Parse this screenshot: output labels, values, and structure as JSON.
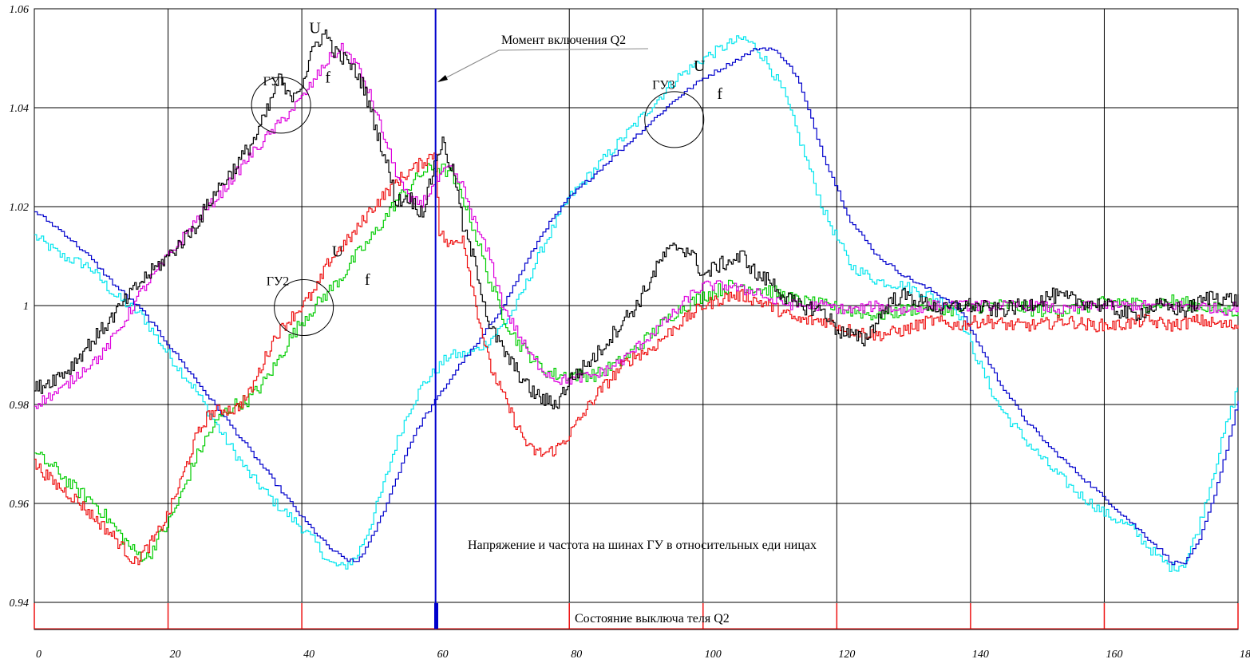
{
  "chart_data": {
    "type": "line",
    "title": "",
    "xlabel": "",
    "ylabel": "",
    "xlim": [
      0,
      180
    ],
    "ylim": [
      0.94,
      1.06
    ],
    "grid": true,
    "x_ticks": [
      "0",
      "20",
      "40",
      "60",
      "80",
      "100",
      "120",
      "140",
      "160",
      "180"
    ],
    "y_ticks": [
      "0.94",
      "0.96",
      "0.98",
      "1",
      "1.02",
      "1.04",
      "1.06"
    ],
    "caption_main": "Напряжение и частота на шинах ГУ  в относительных еди ницах",
    "caption_switch": "Состояние выключа теля Q2",
    "switch_marker_label": "Момент включения Q2",
    "switch_time": 60,
    "switch_ticks": [
      0,
      20,
      40,
      80,
      100,
      120,
      140,
      160,
      180
    ],
    "switch_state_bar": [
      59.8,
      60.4
    ],
    "annotations": [
      {
        "text": "ГУ1",
        "x": 34.2,
        "y": 1.0445,
        "kind": "group"
      },
      {
        "text": "ГУ2",
        "x": 34.7,
        "y": 1.0041,
        "kind": "group"
      },
      {
        "text": "ГУ3",
        "x": 92.4,
        "y": 1.0438,
        "kind": "group"
      },
      {
        "text": "U",
        "x": 41.1,
        "y": 1.0551,
        "kind": "var"
      },
      {
        "text": "f",
        "x": 43.5,
        "y": 1.0451,
        "kind": "var"
      },
      {
        "text": "U",
        "x": 44.5,
        "y": 1.0099,
        "kind": "var"
      },
      {
        "text": "f",
        "x": 49.4,
        "y": 1.0042,
        "kind": "var"
      },
      {
        "text": "U",
        "x": 98.6,
        "y": 1.0474,
        "kind": "var"
      },
      {
        "text": "f",
        "x": 102.1,
        "y": 1.0418,
        "kind": "var"
      }
    ],
    "circles": [
      {
        "x": 36.9,
        "y": 1.0405,
        "label": "ГУ1"
      },
      {
        "x": 40.3,
        "y": 0.9996,
        "label": "ГУ2"
      },
      {
        "x": 95.7,
        "y": 1.0376,
        "label": "ГУ3"
      }
    ],
    "colors": {
      "u1": "#000000",
      "f1": "#dd00dd",
      "u2": "#ee1111",
      "f2": "#00cc00",
      "u3": "#00e5ee",
      "f3": "#0000cc",
      "switch_line": "#0000cc",
      "switch_ticks": "#ee1111"
    },
    "series": [
      {
        "key": "u1",
        "label": "U",
        "group": "ГУ1",
        "noise": 0.0016,
        "stair": 0.25,
        "x": [
          0,
          5,
          8,
          10,
          13,
          16,
          20,
          24,
          27,
          30,
          33,
          35,
          36.5,
          38,
          40,
          42,
          43.5,
          45,
          47,
          49,
          51,
          53,
          54,
          56,
          57,
          58,
          59,
          60,
          61,
          62,
          63,
          64,
          66,
          68,
          70,
          72,
          74,
          76,
          78,
          80,
          84,
          88,
          90,
          92,
          94,
          96,
          98,
          100,
          102,
          104,
          106,
          108,
          110,
          112,
          114,
          118,
          120,
          122,
          124,
          126,
          128,
          130,
          134,
          136,
          138,
          140,
          144,
          148,
          152,
          156,
          160,
          164,
          168,
          172,
          176,
          180
        ],
        "y": [
          0.983,
          0.987,
          0.992,
          0.995,
          1.0,
          1.005,
          1.01,
          1.016,
          1.023,
          1.028,
          1.034,
          1.04,
          1.046,
          1.042,
          1.045,
          1.053,
          1.055,
          1.051,
          1.049,
          1.045,
          1.036,
          1.027,
          1.021,
          1.022,
          1.02,
          1.019,
          1.024,
          1.03,
          1.033,
          1.029,
          1.025,
          1.016,
          1.008,
          0.996,
          0.991,
          0.987,
          0.983,
          0.981,
          0.98,
          0.985,
          0.99,
          0.997,
          1.0,
          1.005,
          1.01,
          1.012,
          1.011,
          1.006,
          1.008,
          1.009,
          1.01,
          1.006,
          1.005,
          1.002,
          1.0,
          0.999,
          0.995,
          0.994,
          0.993,
          0.997,
          1.001,
          1.002,
          1.0,
          0.999,
          1.0,
          1.0,
          0.999,
          1.0,
          1.002,
          1.001,
          1.0,
          0.998,
          1.0,
          0.999,
          1.002,
          1.001
        ]
      },
      {
        "key": "f1",
        "label": "f",
        "group": "ГУ1",
        "noise": 0.0011,
        "stair": 0.3,
        "x": [
          0,
          4,
          8,
          10,
          13,
          16,
          20,
          24,
          28,
          32,
          36,
          40,
          44,
          46,
          48,
          50,
          52,
          54,
          56,
          58,
          60,
          62,
          64,
          66,
          68,
          70,
          72,
          74,
          76,
          78,
          80,
          84,
          88,
          92,
          96,
          98,
          100,
          102,
          104,
          106,
          108,
          110,
          114,
          118,
          122,
          126,
          130,
          134,
          138,
          142,
          146,
          150,
          154,
          158,
          162,
          166,
          170,
          174,
          178,
          180
        ],
        "y": [
          0.98,
          0.983,
          0.988,
          0.99,
          0.996,
          1.003,
          1.01,
          1.017,
          1.023,
          1.03,
          1.036,
          1.042,
          1.05,
          1.052,
          1.049,
          1.043,
          1.035,
          1.027,
          1.021,
          1.021,
          1.025,
          1.028,
          1.024,
          1.016,
          1.01,
          1.0,
          0.995,
          0.99,
          0.987,
          0.985,
          0.985,
          0.986,
          0.989,
          0.994,
          0.999,
          1.002,
          1.004,
          1.004,
          1.004,
          1.003,
          1.003,
          1.001,
          1.0,
          1.0,
          0.999,
          1.0,
          0.999,
          1.0,
          1.0,
          1.0,
          1.0,
          1.0,
          0.999,
          1.0,
          1.0,
          1.0,
          1.0,
          1.0,
          0.999,
          1.0
        ]
      },
      {
        "key": "u2",
        "label": "U",
        "group": "ГУ2",
        "noise": 0.0013,
        "stair": 0.25,
        "x": [
          0,
          3,
          6,
          9,
          12,
          15,
          18,
          20,
          22,
          24,
          26,
          28,
          30,
          32,
          34,
          36,
          38,
          40,
          42,
          44,
          46,
          48,
          50,
          52,
          54,
          56,
          58,
          59,
          60,
          60.5,
          62,
          64,
          66,
          68,
          70,
          72,
          74,
          76,
          78,
          80,
          84,
          88,
          90,
          92,
          96,
          100,
          104,
          106,
          110,
          114,
          118,
          122,
          126,
          130,
          134,
          138,
          142,
          146,
          150,
          154,
          158,
          162,
          166,
          170,
          174,
          178,
          180
        ],
        "y": [
          0.968,
          0.964,
          0.961,
          0.957,
          0.953,
          0.948,
          0.953,
          0.958,
          0.965,
          0.973,
          0.978,
          0.979,
          0.979,
          0.982,
          0.988,
          0.994,
          0.997,
          1.0,
          1.003,
          1.009,
          1.012,
          1.015,
          1.019,
          1.022,
          1.025,
          1.027,
          1.029,
          1.03,
          1.031,
          1.015,
          1.012,
          1.014,
          1.0,
          0.988,
          0.982,
          0.976,
          0.971,
          0.97,
          0.971,
          0.974,
          0.982,
          0.988,
          0.99,
          0.991,
          0.996,
          1.0,
          1.002,
          1.002,
          1.0,
          0.997,
          0.997,
          0.995,
          0.994,
          0.995,
          0.997,
          0.996,
          0.997,
          0.996,
          0.996,
          0.997,
          0.996,
          0.996,
          0.997,
          0.996,
          0.997,
          0.996,
          0.996
        ]
      },
      {
        "key": "f2",
        "label": "f",
        "group": "ГУ2",
        "noise": 0.0014,
        "stair": 0.3,
        "x": [
          0,
          3,
          6,
          9,
          12,
          15,
          17,
          18,
          20,
          22,
          24,
          26,
          28,
          30,
          32,
          34,
          36,
          38,
          40,
          42,
          44,
          46,
          48,
          50,
          52,
          54,
          56,
          58,
          60,
          62,
          64,
          66,
          68,
          70,
          72,
          74,
          76,
          78,
          80,
          84,
          88,
          92,
          96,
          100,
          104,
          106,
          110,
          114,
          118,
          122,
          126,
          130,
          134,
          138,
          142,
          146,
          150,
          154,
          158,
          162,
          166,
          170,
          174,
          178,
          180
        ],
        "y": [
          0.97,
          0.967,
          0.963,
          0.96,
          0.955,
          0.95,
          0.949,
          0.952,
          0.956,
          0.962,
          0.969,
          0.974,
          0.978,
          0.98,
          0.981,
          0.984,
          0.988,
          0.993,
          0.997,
          1.0,
          1.003,
          1.006,
          1.01,
          1.013,
          1.017,
          1.021,
          1.024,
          1.027,
          1.028,
          1.027,
          1.022,
          1.014,
          1.005,
          0.998,
          0.993,
          0.99,
          0.987,
          0.986,
          0.986,
          0.986,
          0.989,
          0.994,
          0.999,
          1.002,
          1.004,
          1.004,
          1.003,
          1.001,
          1.0,
          0.999,
          0.998,
          0.999,
          1.0,
          0.999,
          1.0,
          1.0,
          0.999,
          0.999,
          1.0,
          1.001,
          1.0,
          1.001,
          1.0,
          0.999,
          0.999
        ]
      },
      {
        "key": "u3",
        "label": "U",
        "group": "ГУ3",
        "noise": 0.0011,
        "stair": 0.35,
        "x": [
          0,
          4,
          8,
          12,
          16,
          20,
          24,
          28,
          32,
          36,
          40,
          42,
          44,
          46,
          48,
          50,
          52,
          54,
          56,
          58,
          60,
          62,
          64,
          66,
          68,
          70,
          72,
          74,
          76,
          80,
          84,
          88,
          92,
          96,
          100,
          104,
          106,
          108,
          110,
          112,
          114,
          118,
          122,
          126,
          130,
          134,
          138,
          140,
          142,
          144,
          148,
          152,
          156,
          160,
          164,
          166,
          168,
          170,
          172,
          174,
          176,
          178,
          180
        ],
        "y": [
          1.014,
          1.01,
          1.008,
          1.002,
          0.998,
          0.99,
          0.983,
          0.974,
          0.966,
          0.96,
          0.955,
          0.952,
          0.948,
          0.947,
          0.949,
          0.955,
          0.963,
          0.972,
          0.979,
          0.984,
          0.987,
          0.99,
          0.99,
          0.991,
          0.993,
          0.996,
          1.0,
          1.006,
          1.012,
          1.022,
          1.028,
          1.034,
          1.04,
          1.046,
          1.05,
          1.053,
          1.054,
          1.052,
          1.048,
          1.043,
          1.035,
          1.019,
          1.008,
          1.005,
          1.004,
          1.002,
          0.999,
          0.992,
          0.986,
          0.98,
          0.973,
          0.967,
          0.962,
          0.958,
          0.955,
          0.952,
          0.949,
          0.947,
          0.948,
          0.955,
          0.965,
          0.975,
          0.984
        ]
      },
      {
        "key": "f3",
        "label": "f",
        "group": "ГУ3",
        "noise": 0.0004,
        "stair": 0.45,
        "x": [
          0,
          4,
          8,
          12,
          16,
          20,
          24,
          28,
          32,
          36,
          40,
          42,
          44,
          46,
          48,
          50,
          52,
          54,
          56,
          58,
          60,
          62,
          64,
          66,
          68,
          70,
          72,
          74,
          76,
          80,
          84,
          88,
          92,
          96,
          100,
          104,
          108,
          110,
          112,
          114,
          118,
          122,
          126,
          130,
          134,
          138,
          140,
          142,
          144,
          148,
          152,
          156,
          160,
          164,
          168,
          170,
          172,
          174,
          176,
          178,
          180
        ],
        "y": [
          1.019,
          1.015,
          1.01,
          1.004,
          0.999,
          0.992,
          0.985,
          0.978,
          0.971,
          0.964,
          0.957,
          0.954,
          0.951,
          0.949,
          0.948,
          0.952,
          0.958,
          0.965,
          0.972,
          0.977,
          0.981,
          0.985,
          0.989,
          0.992,
          0.996,
          1.0,
          1.005,
          1.01,
          1.015,
          1.022,
          1.027,
          1.032,
          1.037,
          1.042,
          1.046,
          1.049,
          1.052,
          1.052,
          1.05,
          1.046,
          1.03,
          1.017,
          1.01,
          1.006,
          1.003,
          1.0,
          0.995,
          0.99,
          0.985,
          0.977,
          0.971,
          0.966,
          0.961,
          0.956,
          0.951,
          0.948,
          0.948,
          0.952,
          0.96,
          0.97,
          0.981
        ]
      }
    ]
  }
}
